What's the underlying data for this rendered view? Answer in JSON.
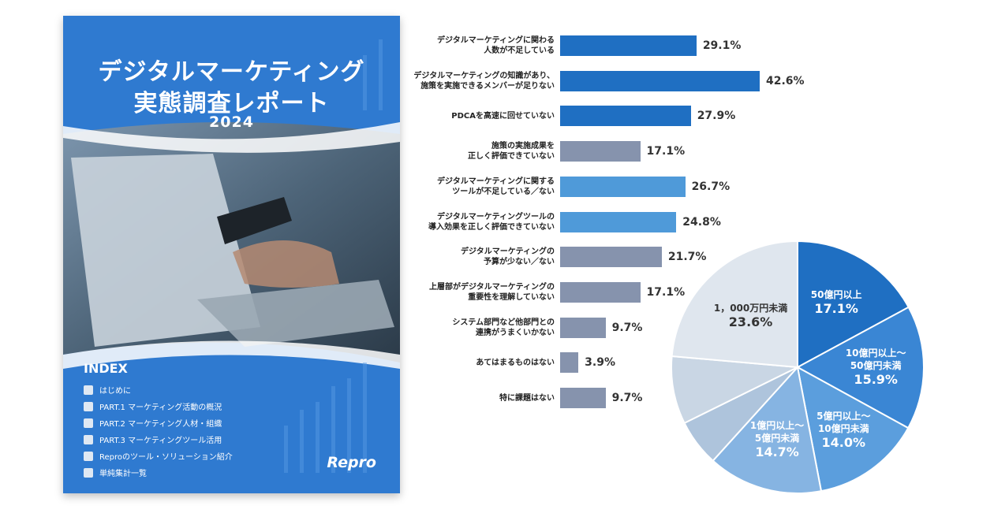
{
  "cover": {
    "title_line1": "デジタルマーケティング",
    "title_line2": "実態調査レポート",
    "year": "2024",
    "index_title": "INDEX",
    "index_items": [
      "はじめに",
      "PART.1 マーケティング活動の概況",
      "PART.2 マーケティング人材・組織",
      "PART.3 マーケティングツール活用",
      "Reproのツール・ソリューション紹介",
      "単純集計一覧"
    ],
    "logo": "Repro"
  },
  "chart_data": [
    {
      "type": "bar",
      "orientation": "horizontal",
      "categories": [
        [
          "デジタルマーケティングに関わる",
          "人数が不足している"
        ],
        [
          "デジタルマーケティングの知識があり、",
          "施策を実施できるメンバーが足りない"
        ],
        [
          "PDCAを高速に回せていない"
        ],
        [
          "施策の実施成果を",
          "正しく評価できていない"
        ],
        [
          "デジタルマーケティングに関する",
          "ツールが不足している／ない"
        ],
        [
          "デジタルマーケティングツールの",
          "導入効果を正しく評価できていない"
        ],
        [
          "デジタルマーケティングの",
          "予算が少ない／ない"
        ],
        [
          "上層部がデジタルマーケティングの",
          "重要性を理解していない"
        ],
        [
          "システム部門など他部門との",
          "連携がうまくいかない"
        ],
        [
          "あてはまるものはない"
        ],
        [
          "特に課題はない"
        ]
      ],
      "values": [
        29.1,
        42.6,
        27.9,
        17.1,
        26.7,
        24.8,
        21.7,
        17.1,
        9.7,
        3.9,
        9.7
      ],
      "value_labels": [
        "29.1%",
        "42.6%",
        "27.9%",
        "17.1%",
        "26.7%",
        "24.8%",
        "21.7%",
        "17.1%",
        "9.7%",
        "3.9%",
        "9.7%"
      ],
      "bar_colors": [
        "#1f6fc2",
        "#1f6fc2",
        "#1f6fc2",
        "#8693ad",
        "#4f9ad9",
        "#4f9ad9",
        "#8693ad",
        "#8693ad",
        "#8693ad",
        "#8693ad",
        "#8693ad"
      ],
      "xlim": [
        0,
        45
      ],
      "grid": false
    },
    {
      "type": "pie",
      "start": "12 o'clock, clockwise",
      "slices": [
        {
          "label": "50億円以上",
          "value": 17.1,
          "value_label": "17.1%",
          "color": "#1f6fc2",
          "text_color": "#ffffff"
        },
        {
          "label": "10億円以上〜\n50億円未満",
          "value": 15.9,
          "value_label": "15.9%",
          "color": "#3a86d4",
          "text_color": "#ffffff"
        },
        {
          "label": "5億円以上〜\n10億円未満",
          "value": 14.0,
          "value_label": "14.0%",
          "color": "#5b9edd",
          "text_color": "#ffffff"
        },
        {
          "label": "1億円以上〜\n5億円未満",
          "value": 14.7,
          "value_label": "14.7%",
          "color": "#86b4e2",
          "text_color": "#ffffff"
        },
        {
          "label": "",
          "value": 6.0,
          "value_label": "",
          "color": "#aec4dc",
          "text_color": "#ffffff"
        },
        {
          "label": "",
          "value": 8.7,
          "value_label": "",
          "color": "#c9d6e4",
          "text_color": "#ffffff"
        },
        {
          "label": "1，000万円未満",
          "value": 23.6,
          "value_label": "23.6%",
          "color": "#dfe6ee",
          "text_color": "#333333"
        }
      ]
    }
  ]
}
